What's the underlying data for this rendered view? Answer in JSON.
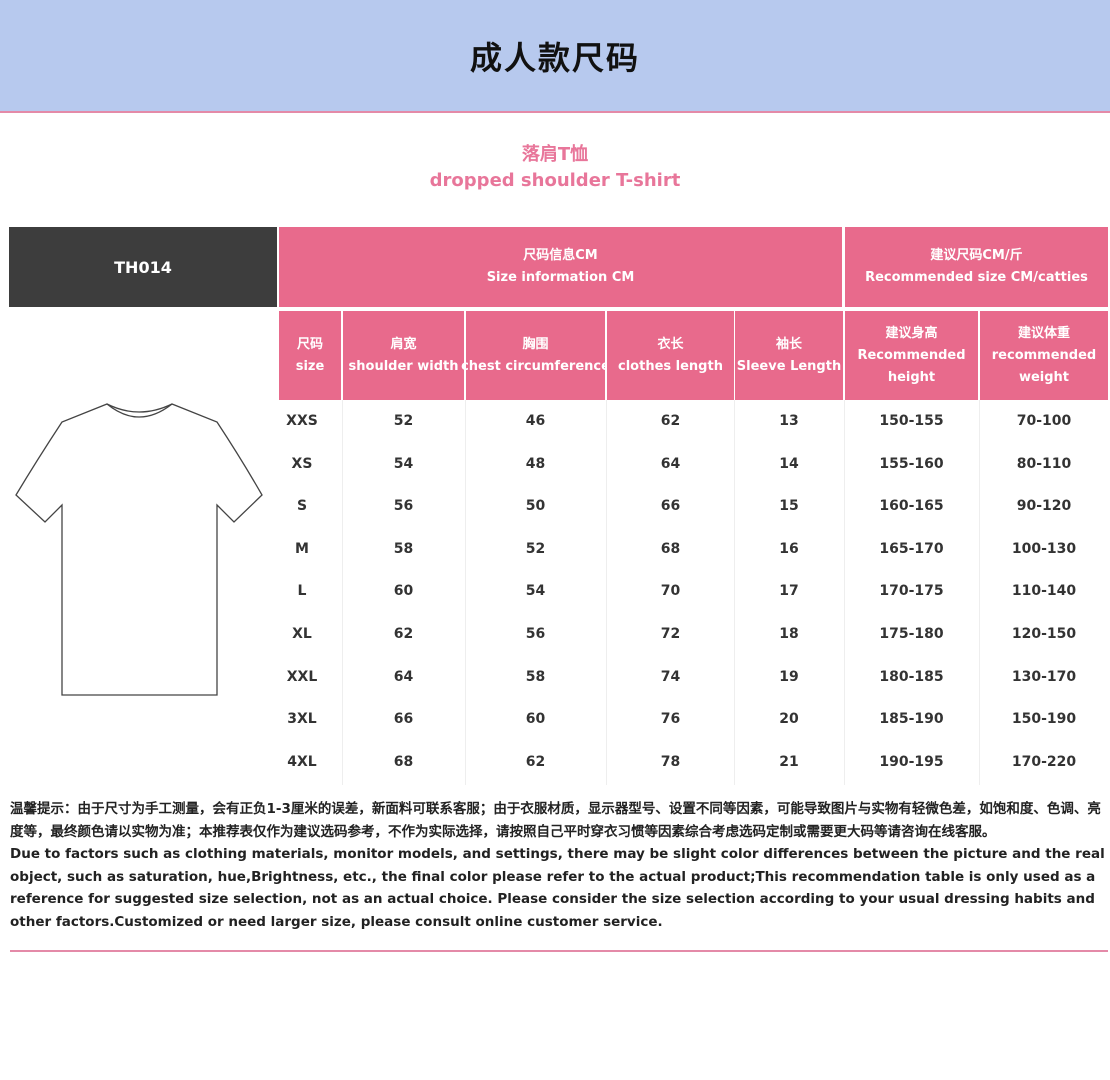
{
  "header": {
    "title": "成人款尺码"
  },
  "product": {
    "name_cn": "落肩T恤",
    "name_en": "dropped shoulder T-shirt",
    "model": "TH014"
  },
  "table": {
    "group_size_info": {
      "cn": "尺码信息CM",
      "en": "Size information CM"
    },
    "group_recommended": {
      "cn": "建议尺码CM/斤",
      "en": "Recommended size CM/catties"
    },
    "columns": [
      {
        "cn": "尺码",
        "en": "size"
      },
      {
        "cn": "肩宽",
        "en": "shoulder width"
      },
      {
        "cn": "胸围",
        "en": "chest circumference"
      },
      {
        "cn": "衣长",
        "en": "clothes length"
      },
      {
        "cn": "袖长",
        "en": "Sleeve Length"
      },
      {
        "cn": "建议身高",
        "en": "Recommended height"
      },
      {
        "cn": "建议体重",
        "en": "recommended weight"
      }
    ],
    "rows": [
      [
        "XXS",
        "52",
        "46",
        "62",
        "13",
        "150-155",
        "70-100"
      ],
      [
        "XS",
        "54",
        "48",
        "64",
        "14",
        "155-160",
        "80-110"
      ],
      [
        "S",
        "56",
        "50",
        "66",
        "15",
        "160-165",
        "90-120"
      ],
      [
        "M",
        "58",
        "52",
        "68",
        "16",
        "165-170",
        "100-130"
      ],
      [
        "L",
        "60",
        "54",
        "70",
        "17",
        "170-175",
        "110-140"
      ],
      [
        "XL",
        "62",
        "56",
        "72",
        "18",
        "175-180",
        "120-150"
      ],
      [
        "XXL",
        "64",
        "58",
        "74",
        "19",
        "180-185",
        "130-170"
      ],
      [
        "3XL",
        "66",
        "60",
        "76",
        "20",
        "185-190",
        "150-190"
      ],
      [
        "4XL",
        "68",
        "62",
        "78",
        "21",
        "190-195",
        "170-220"
      ]
    ]
  },
  "notes": {
    "cn": "温馨提示：由于尺寸为手工测量，会有正负1-3厘米的误差，新面料可联系客服；由于衣服材质，显示器型号、设置不同等因素，可能导致图片与实物有轻微色差，如饱和度、色调、亮度等，最终颜色请以实物为准；本推荐表仅作为建议选码参考，不作为实际选择，请按照自己平时穿衣习惯等因素综合考虑选码定制或需要更大码等请咨询在线客服。",
    "en": "Due to factors such as clothing materials, monitor models, and settings, there may be slight color differences between the picture and the real object, such as saturation, hue,Brightness, etc., the final color please refer to the actual product;This recommendation table is only used as a reference for suggested size selection, not as an actual choice. Please consider the size selection according to your usual dressing habits and other factors.Customized or need larger size, please consult online customer service."
  },
  "colors": {
    "header_bg": "#b7c9ee",
    "pink": "#e86a8c",
    "dark": "#3d3d3d",
    "subtitle": "#e8769a"
  }
}
